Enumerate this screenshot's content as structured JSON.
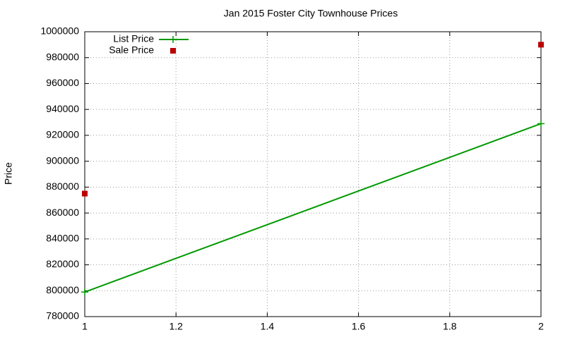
{
  "chart_data": {
    "type": "line",
    "title": "Jan 2015 Foster City Townhouse Prices",
    "y_label": "Price",
    "x": [
      1,
      2
    ],
    "series": [
      {
        "name": "List Price",
        "color": "#009900",
        "mode": "linespoints",
        "values": [
          799000,
          929000
        ]
      },
      {
        "name": "Sale Price",
        "color": "#bb0000",
        "mode": "points",
        "values": [
          875000,
          990000
        ]
      }
    ],
    "xlim": [
      1,
      2
    ],
    "xticks": [
      1,
      1.2,
      1.4,
      1.6,
      1.8,
      2
    ],
    "ylim": [
      780000,
      1000000
    ],
    "yticks": [
      780000,
      800000,
      820000,
      840000,
      860000,
      880000,
      900000,
      920000,
      940000,
      960000,
      980000,
      1000000
    ],
    "grid": true,
    "legend": "top-left"
  }
}
